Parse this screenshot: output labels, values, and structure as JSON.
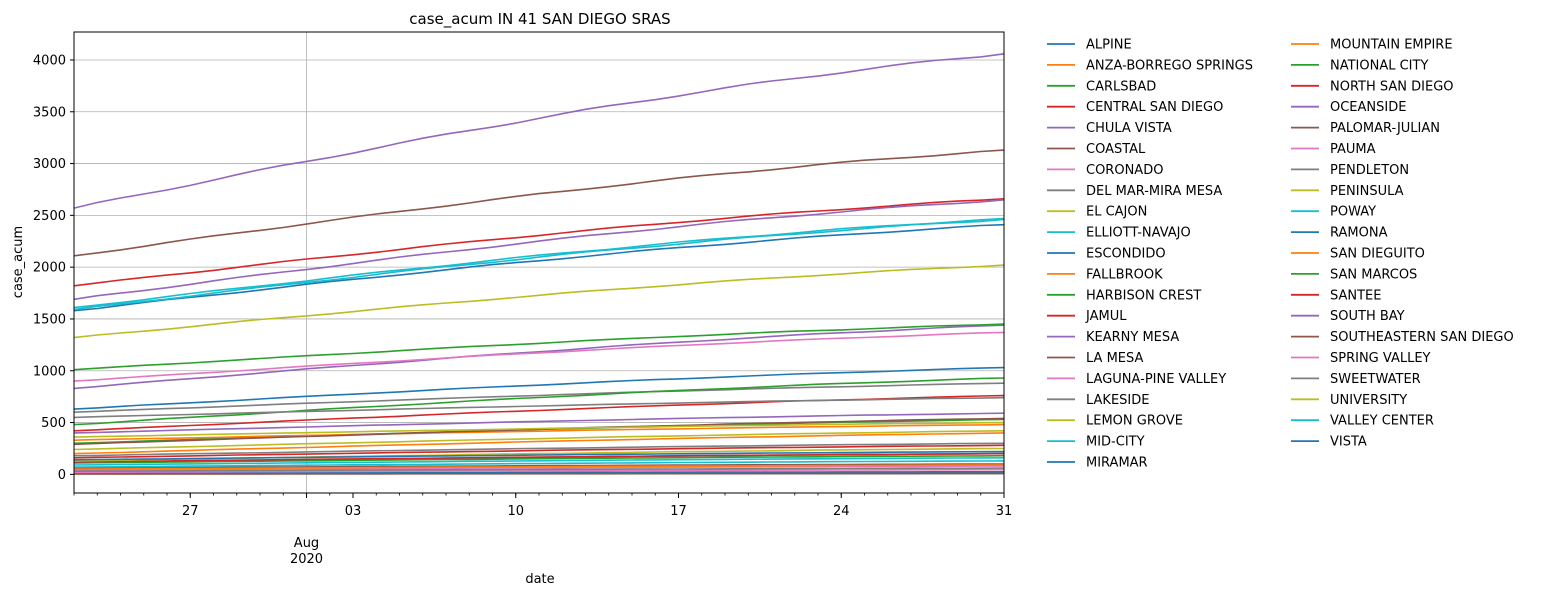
{
  "chart_data": {
    "type": "line",
    "title": "case_acum IN 41 SAN DIEGO SRAS",
    "xlabel": "date",
    "ylabel": "case_acum",
    "x_start": "2020-07-22",
    "x_end": "2020-08-31",
    "xlim": [
      "2020-07-22",
      "2020-08-31"
    ],
    "ylim": [
      -180,
      4270
    ],
    "y_ticks": [
      0,
      500,
      1000,
      1500,
      2000,
      2500,
      3000,
      3500,
      4000
    ],
    "x_ticks": [
      {
        "date": "2020-07-27",
        "label": "27"
      },
      {
        "date": "2020-08-01",
        "label": "Aug"
      },
      {
        "date": "2020-08-03",
        "label": "03"
      },
      {
        "date": "2020-08-10",
        "label": "10"
      },
      {
        "date": "2020-08-17",
        "label": "17"
      },
      {
        "date": "2020-08-24",
        "label": "24"
      },
      {
        "date": "2020-08-31",
        "label": "31"
      }
    ],
    "x_tick_sublabel": "2020",
    "grid": true,
    "grid_x_at": "2020-08-01",
    "legend_position": "outside-right",
    "legend_columns": 2,
    "series": [
      {
        "name": "ALPINE",
        "color": "#1f77b4",
        "values": [
          115,
          200
        ]
      },
      {
        "name": "ANZA-BORREGO SPRINGS",
        "color": "#ff7f0e",
        "values": [
          5,
          12
        ]
      },
      {
        "name": "CARLSBAD",
        "color": "#2ca02c",
        "values": [
          300,
          530
        ]
      },
      {
        "name": "CENTRAL SAN DIEGO",
        "color": "#d62728",
        "values": [
          420,
          760
        ]
      },
      {
        "name": "CHULA VISTA",
        "color": "#9467bd",
        "values": [
          2570,
          4060
        ]
      },
      {
        "name": "COASTAL",
        "color": "#8c564b",
        "values": [
          60,
          100
        ]
      },
      {
        "name": "CORONADO",
        "color": "#e377c2",
        "values": [
          40,
          80
        ]
      },
      {
        "name": "DEL MAR-MIRA MESA",
        "color": "#7f7f7f",
        "values": [
          600,
          880
        ]
      },
      {
        "name": "EL CAJON",
        "color": "#bcbd22",
        "values": [
          1320,
          2020
        ]
      },
      {
        "name": "ELLIOTT-NAVAJO",
        "color": "#17becf",
        "values": [
          1610,
          2470
        ]
      },
      {
        "name": "ESCONDIDO",
        "color": "#1f77b4",
        "values": [
          1580,
          2410
        ]
      },
      {
        "name": "FALLBROOK",
        "color": "#ff7f0e",
        "values": [
          330,
          480
        ]
      },
      {
        "name": "HARBISON CREST",
        "color": "#2ca02c",
        "values": [
          110,
          180
        ]
      },
      {
        "name": "JAMUL",
        "color": "#d62728",
        "values": [
          120,
          200
        ]
      },
      {
        "name": "KEARNY MESA",
        "color": "#9467bd",
        "values": [
          830,
          1440
        ]
      },
      {
        "name": "LA MESA",
        "color": "#8c564b",
        "values": [
          290,
          540
        ]
      },
      {
        "name": "LAGUNA-PINE VALLEY",
        "color": "#e377c2",
        "values": [
          8,
          20
        ]
      },
      {
        "name": "LAKESIDE",
        "color": "#7f7f7f",
        "values": [
          180,
          300
        ]
      },
      {
        "name": "LEMON GROVE",
        "color": "#bcbd22",
        "values": [
          240,
          420
        ]
      },
      {
        "name": "MID-CITY",
        "color": "#17becf",
        "values": [
          1590,
          2460
        ]
      },
      {
        "name": "MIRAMAR",
        "color": "#1f77b4",
        "values": [
          10,
          25
        ]
      },
      {
        "name": "MOUNTAIN EMPIRE",
        "color": "#ff7f0e",
        "values": [
          50,
          90
        ]
      },
      {
        "name": "NATIONAL CITY",
        "color": "#2ca02c",
        "values": [
          1010,
          1450
        ]
      },
      {
        "name": "NORTH SAN DIEGO",
        "color": "#d62728",
        "values": [
          160,
          280
        ]
      },
      {
        "name": "OCEANSIDE",
        "color": "#9467bd",
        "values": [
          400,
          590
        ]
      },
      {
        "name": "PALOMAR-JULIAN",
        "color": "#8c564b",
        "values": [
          3,
          10
        ]
      },
      {
        "name": "PAUMA",
        "color": "#e377c2",
        "values": [
          20,
          45
        ]
      },
      {
        "name": "PENDLETON",
        "color": "#7f7f7f",
        "values": [
          30,
          60
        ]
      },
      {
        "name": "PENINSULA",
        "color": "#bcbd22",
        "values": [
          130,
          250
        ]
      },
      {
        "name": "POWAY",
        "color": "#17becf",
        "values": [
          90,
          160
        ]
      },
      {
        "name": "RAMONA",
        "color": "#1f77b4",
        "values": [
          140,
          220
        ]
      },
      {
        "name": "SAN DIEGUITO",
        "color": "#ff7f0e",
        "values": [
          200,
          400
        ]
      },
      {
        "name": "SAN MARCOS",
        "color": "#2ca02c",
        "values": [
          480,
          930
        ]
      },
      {
        "name": "SANTEE",
        "color": "#d62728",
        "values": [
          1820,
          2660
        ]
      },
      {
        "name": "SOUTH BAY",
        "color": "#9467bd",
        "values": [
          1690,
          2650
        ]
      },
      {
        "name": "SOUTHEASTERN SAN DIEGO",
        "color": "#8c564b",
        "values": [
          2110,
          3130
        ]
      },
      {
        "name": "SPRING VALLEY",
        "color": "#e377c2",
        "values": [
          900,
          1370
        ]
      },
      {
        "name": "SWEETWATER",
        "color": "#7f7f7f",
        "values": [
          550,
          740
        ]
      },
      {
        "name": "UNIVERSITY",
        "color": "#bcbd22",
        "values": [
          360,
          500
        ]
      },
      {
        "name": "VALLEY CENTER",
        "color": "#17becf",
        "values": [
          70,
          130
        ]
      },
      {
        "name": "VISTA",
        "color": "#1f77b4",
        "values": [
          630,
          1030
        ]
      }
    ]
  }
}
